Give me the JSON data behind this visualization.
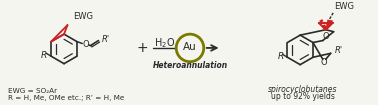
{
  "bg_color": "#f5f5f0",
  "bond_color": "#2a2a2a",
  "red_color": "#cc2222",
  "olive_color": "#7a7a00",
  "blue_color": "#2244aa",
  "figsize": [
    3.78,
    1.05
  ],
  "dpi": 100,
  "ewg_label": "EWG",
  "au_label": "Au",
  "heteroannulation": "Heteroannulation",
  "product_label1": "spirocyclobutanes",
  "product_label2": "up to 92% yields",
  "ewg_def": "EWG = SO₂Ar",
  "r_def": "R = H, Me, OMe etc.; R’ = H, Me"
}
